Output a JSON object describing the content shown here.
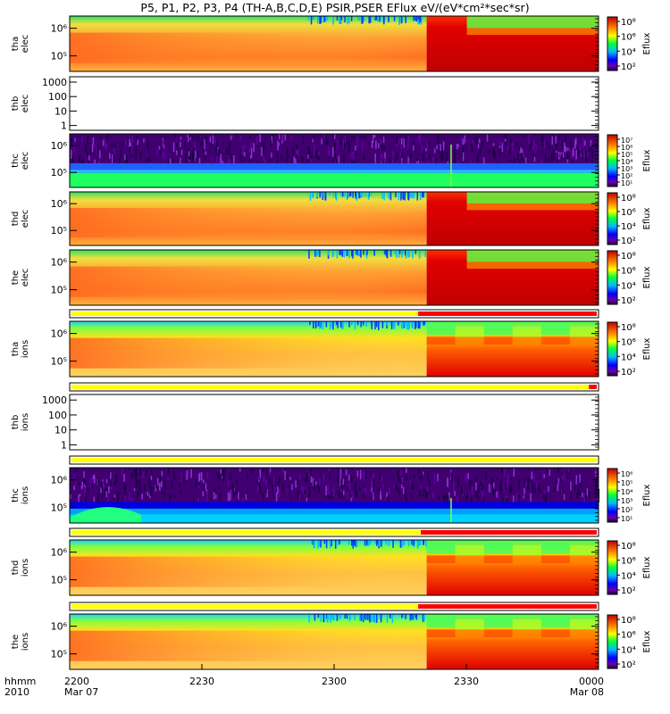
{
  "title": "P5, P1, P2, P3, P4 (TH-A,B,C,D,E) PSIR,PSER EFlux eV/(eV*cm²*sec*sr)",
  "colorbar_label": "Eflux",
  "time_axis": {
    "row1": "hhmm",
    "row2": "2010",
    "ticks": [
      {
        "label": "2200",
        "date": "Mar 07",
        "frac": 0.0
      },
      {
        "label": "2230",
        "date": "",
        "frac": 0.25
      },
      {
        "label": "2300",
        "date": "",
        "frac": 0.5
      },
      {
        "label": "2330",
        "date": "",
        "frac": 0.75
      },
      {
        "label": "0000",
        "date": "Mar 08",
        "frac": 1.0
      }
    ]
  },
  "chart_data": [
    {
      "type": "heatmap",
      "name": "tha_elec",
      "ylabel": [
        "tha",
        "elec"
      ],
      "yscale": "log",
      "yticks": [
        "10⁶",
        "10⁵"
      ],
      "kind": "thermal",
      "transition_frac": 0.675,
      "colorbar": [
        "10⁸",
        "10⁶",
        "10⁴",
        "10²"
      ]
    },
    {
      "type": "heatmap",
      "name": "thb_elec",
      "ylabel": [
        "thb",
        "elec"
      ],
      "yscale": "log",
      "yticks": [
        "1000",
        "100",
        "10",
        "1"
      ],
      "kind": "empty",
      "colorbar": []
    },
    {
      "type": "heatmap",
      "name": "thc_elec",
      "ylabel": [
        "thc",
        "elec"
      ],
      "yscale": "log",
      "yticks": [
        "10⁶",
        "10⁵"
      ],
      "kind": "noise",
      "colorbar": [
        "10⁷",
        "10⁶",
        "10⁵",
        "10⁴",
        "10³",
        "10²",
        "10¹"
      ]
    },
    {
      "type": "heatmap",
      "name": "thd_elec",
      "ylabel": [
        "thd",
        "elec"
      ],
      "yscale": "log",
      "yticks": [
        "10⁶",
        "10⁵"
      ],
      "kind": "thermal",
      "transition_frac": 0.675,
      "colorbar": [
        "10⁸",
        "10⁶",
        "10⁴",
        "10²"
      ]
    },
    {
      "type": "heatmap",
      "name": "the_elec",
      "ylabel": [
        "the",
        "elec"
      ],
      "yscale": "log",
      "yticks": [
        "10⁶",
        "10⁵"
      ],
      "kind": "thermal",
      "transition_frac": 0.675,
      "colorbar": [
        "10⁸",
        "10⁶",
        "10⁴",
        "10²"
      ],
      "mode_bar": {
        "yellow_until": 0.66
      }
    },
    {
      "type": "heatmap",
      "name": "tha_ions",
      "ylabel": [
        "tha",
        "ions"
      ],
      "yscale": "log",
      "yticks": [
        "10⁶",
        "10⁵"
      ],
      "kind": "thermal_ion",
      "transition_frac": 0.675,
      "colorbar": [
        "10⁸",
        "10⁶",
        "10⁴",
        "10²"
      ],
      "mode_bar": {
        "yellow_until": 0.985
      }
    },
    {
      "type": "heatmap",
      "name": "thb_ions",
      "ylabel": [
        "thb",
        "ions"
      ],
      "yscale": "log",
      "yticks": [
        "1000",
        "100",
        "10",
        "1"
      ],
      "kind": "empty",
      "colorbar": [],
      "mode_bar": {
        "yellow_until": 1.0
      }
    },
    {
      "type": "heatmap",
      "name": "thc_ions",
      "ylabel": [
        "thc",
        "ions"
      ],
      "yscale": "log",
      "yticks": [
        "10⁶",
        "10⁵"
      ],
      "kind": "noise_ion",
      "colorbar": [
        "10⁶",
        "10⁵",
        "10⁴",
        "10³",
        "10²",
        "10¹"
      ],
      "mode_bar": {
        "yellow_until": 0.665
      }
    },
    {
      "type": "heatmap",
      "name": "thd_ions",
      "ylabel": [
        "thd",
        "ions"
      ],
      "yscale": "log",
      "yticks": [
        "10⁶",
        "10⁵"
      ],
      "kind": "thermal_ion",
      "transition_frac": 0.675,
      "colorbar": [
        "10⁸",
        "10⁶",
        "10⁴",
        "10²"
      ],
      "mode_bar": {
        "yellow_until": 0.66
      }
    },
    {
      "type": "heatmap",
      "name": "the_ions",
      "ylabel": [
        "the",
        "ions"
      ],
      "yscale": "log",
      "yticks": [
        "10⁶",
        "10⁵"
      ],
      "kind": "thermal_ion",
      "transition_frac": 0.675,
      "colorbar": [
        "10⁸",
        "10⁶",
        "10⁴",
        "10²"
      ]
    }
  ]
}
